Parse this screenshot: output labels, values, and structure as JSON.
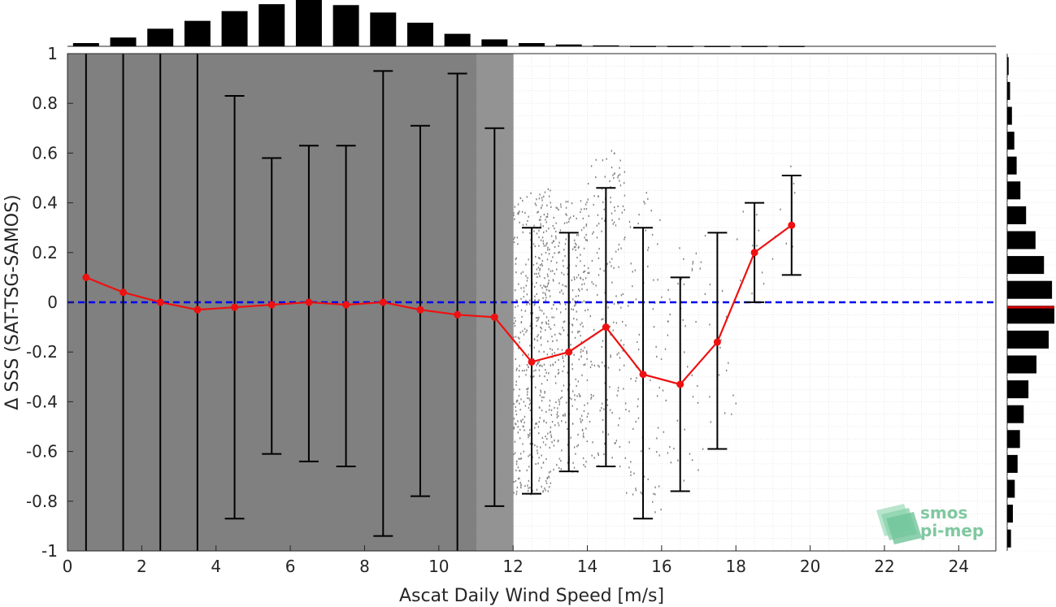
{
  "chart_data": {
    "type": "scatter",
    "xlabel": "Ascat Daily Wind Speed [m/s]",
    "ylabel": "Δ SSS (SAT-TSG-SAMOS)",
    "xlim": [
      0,
      25
    ],
    "ylim": [
      -1,
      1
    ],
    "xticks": [
      0,
      2,
      4,
      6,
      8,
      10,
      12,
      14,
      16,
      18,
      20,
      22,
      24
    ],
    "yticks": [
      -1,
      -0.8,
      -0.6,
      -0.4,
      -0.2,
      0,
      0.2,
      0.4,
      0.6,
      0.8,
      1
    ],
    "ytick_labels": [
      "-1",
      "-0.8",
      "-0.6",
      "-0.4",
      "-0.2",
      "0",
      "0.2",
      "0.4",
      "0.6",
      "0.8",
      "1"
    ],
    "grid": true,
    "reference_line": {
      "y": 0,
      "color": "#0000ee",
      "style": "dashed"
    },
    "binned_mean": {
      "x": [
        0.5,
        1.5,
        2.5,
        3.5,
        4.5,
        5.5,
        6.5,
        7.5,
        8.5,
        9.5,
        10.5,
        11.5,
        12.5,
        13.5,
        14.5,
        15.5,
        16.5,
        17.5,
        18.5,
        19.5
      ],
      "mean": [
        0.1,
        0.04,
        0.0,
        -0.03,
        -0.02,
        -0.01,
        0.0,
        -0.01,
        0.0,
        -0.03,
        -0.05,
        -0.06,
        -0.24,
        -0.2,
        -0.1,
        -0.29,
        -0.33,
        -0.16,
        0.2,
        0.31
      ],
      "upper": [
        1.1,
        1.1,
        1.1,
        1.1,
        0.83,
        0.58,
        0.63,
        0.63,
        0.93,
        0.71,
        0.92,
        0.7,
        0.3,
        0.28,
        0.46,
        0.3,
        0.1,
        0.28,
        0.4,
        0.51
      ],
      "lower": [
        -1.1,
        -1.1,
        -1.1,
        -1.1,
        -0.87,
        -0.61,
        -0.64,
        -0.66,
        -0.94,
        -0.78,
        -1.1,
        -0.82,
        -0.77,
        -0.68,
        -0.66,
        -0.87,
        -0.76,
        -0.59,
        0.0,
        0.11
      ],
      "color": "#ee1111"
    },
    "scatter_density": {
      "bin_x": [
        0.5,
        1.5,
        2.5,
        3.5,
        4.5,
        5.5,
        6.5,
        7.5,
        8.5,
        9.5,
        10.5,
        11.5,
        12.5,
        13.5,
        14.5,
        15.5,
        16.5,
        17.5,
        18.5,
        19.5
      ],
      "relative_density": [
        1.0,
        1.0,
        1.0,
        1.0,
        1.0,
        1.0,
        1.0,
        1.0,
        1.0,
        1.0,
        1.0,
        0.85,
        0.65,
        0.45,
        0.25,
        0.12,
        0.06,
        0.03,
        0.015,
        0.01
      ],
      "color": "#808080"
    },
    "top_histogram": {
      "bin_x": [
        0.5,
        1.5,
        2.5,
        3.5,
        4.5,
        5.5,
        6.5,
        7.5,
        8.5,
        9.5,
        10.5,
        11.5,
        12.5,
        13.5,
        14.5,
        15.5,
        16.5,
        17.5,
        18.5,
        19.5
      ],
      "relative_count": [
        0.07,
        0.19,
        0.38,
        0.55,
        0.76,
        0.91,
        1.0,
        0.89,
        0.73,
        0.51,
        0.27,
        0.15,
        0.07,
        0.04,
        0.02,
        0.01,
        0.01,
        0.01,
        0.01,
        0.01
      ]
    },
    "right_histogram": {
      "bin_y": [
        0.95,
        0.85,
        0.75,
        0.65,
        0.55,
        0.45,
        0.35,
        0.25,
        0.15,
        0.05,
        -0.05,
        -0.15,
        -0.25,
        -0.35,
        -0.45,
        -0.55,
        -0.65,
        -0.75,
        -0.85,
        -0.95
      ],
      "relative_count": [
        0.03,
        0.06,
        0.1,
        0.15,
        0.2,
        0.28,
        0.4,
        0.6,
        0.78,
        0.95,
        1.0,
        0.88,
        0.62,
        0.45,
        0.35,
        0.27,
        0.22,
        0.16,
        0.12,
        0.08
      ],
      "median_line": {
        "y": -0.02,
        "color": "#cc0000"
      }
    }
  },
  "logo": {
    "line1": "smos",
    "line2": "pi-mep",
    "color": "#7fc8a0"
  }
}
